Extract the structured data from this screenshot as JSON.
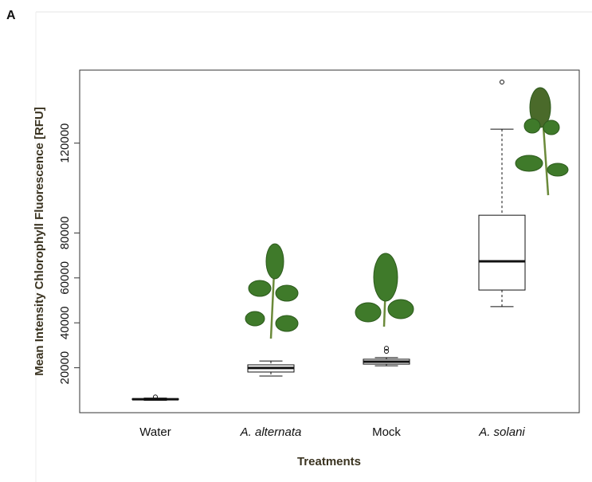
{
  "chart_data": {
    "type": "box",
    "panel_label": "A",
    "x_label": "Treatments",
    "y_label": "Mean Intensity Chlorophyll Fluorescence [RFU]",
    "categories": [
      "Water",
      "A. alternata",
      "Mock",
      "A. solani"
    ],
    "italic": [
      false,
      true,
      false,
      true
    ],
    "boxes": [
      {
        "min": 5500,
        "q1": 5800,
        "median": 6000,
        "q3": 6200,
        "max": 6500,
        "outliers": [
          7000
        ]
      },
      {
        "min": 16300,
        "q1": 18100,
        "median": 19900,
        "q3": 21300,
        "max": 23000,
        "outliers": []
      },
      {
        "min": 20900,
        "q1": 21600,
        "median": 22700,
        "q3": 23800,
        "max": 24500,
        "outliers": [
          27300,
          28700
        ]
      },
      {
        "min": 47200,
        "q1": 54600,
        "median": 67400,
        "q3": 87900,
        "max": 126200,
        "outliers": [
          147200
        ]
      }
    ],
    "color": "#111111",
    "ylim": [
      0,
      152500
    ],
    "yticks": [
      20000,
      40000,
      60000,
      80000,
      120000
    ]
  }
}
